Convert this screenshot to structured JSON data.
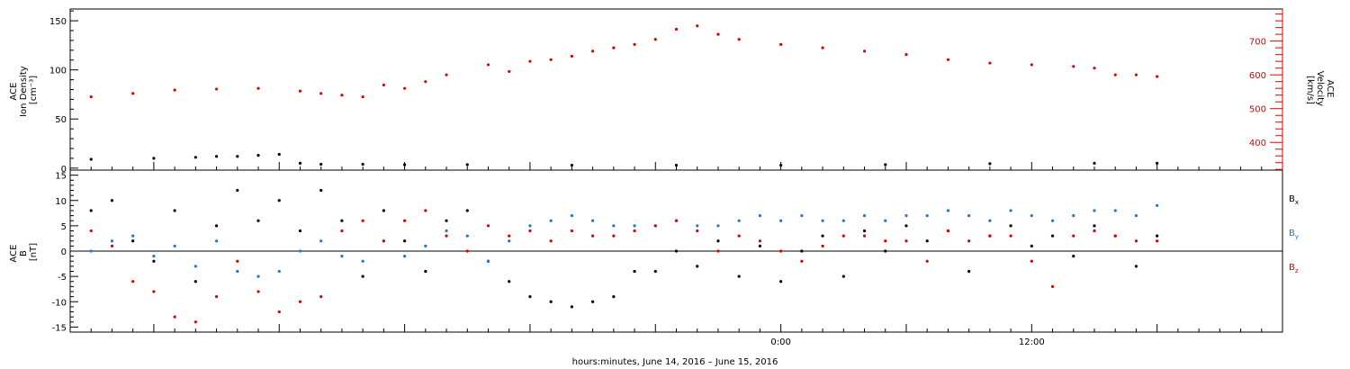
{
  "chart_data": [
    {
      "type": "scatter",
      "panel": "top",
      "left_axis": {
        "label_lines": [
          "ACE",
          "Ion Density",
          "[cm⁻³]"
        ],
        "ylim": [
          -2,
          162
        ],
        "ticks": [
          0,
          50,
          100,
          150
        ],
        "tick_labels": [
          "0",
          "50",
          "100",
          "150"
        ]
      },
      "right_axis": {
        "label_lines": [
          "ACE",
          "Velocity",
          "[km/s]"
        ],
        "ylim": [
          318,
          795
        ],
        "ticks": [
          400,
          500,
          600,
          700
        ],
        "tick_labels": [
          "400",
          "500",
          "600",
          "700"
        ],
        "color": "#dd0000"
      },
      "series": [
        {
          "axis": "left",
          "color": "#000000",
          "x": [
            -33,
            -30,
            -28,
            -27,
            -26,
            -25,
            -24,
            -23,
            -22,
            -20,
            -18,
            -15,
            -10,
            -5,
            0,
            5,
            10,
            15,
            18
          ],
          "y": [
            9,
            10,
            11,
            12,
            12,
            13,
            14,
            5,
            4,
            4,
            3.5,
            3.5,
            3,
            3,
            3,
            3.5,
            4.5,
            5,
            5
          ]
        },
        {
          "axis": "right",
          "color": "#dd0000",
          "x": [
            -33,
            -31,
            -29,
            -27,
            -25,
            -23,
            -22,
            -21,
            -20,
            -19,
            -18,
            -17,
            -16,
            -14,
            -13,
            -12,
            -11,
            -10,
            -9,
            -8,
            -7,
            -6,
            -5,
            -4,
            -3,
            -2,
            0,
            2,
            4,
            6,
            8,
            10,
            12,
            14,
            15,
            16,
            17,
            18
          ],
          "y": [
            535,
            545,
            555,
            558,
            560,
            552,
            545,
            540,
            535,
            570,
            560,
            580,
            600,
            630,
            610,
            640,
            645,
            655,
            670,
            680,
            690,
            705,
            735,
            745,
            720,
            705,
            690,
            680,
            670,
            660,
            645,
            635,
            630,
            625,
            620,
            600,
            600,
            595
          ]
        }
      ]
    },
    {
      "type": "scatter",
      "panel": "bottom",
      "y_axis": {
        "label_lines": [
          "ACE",
          "B",
          "[nT]"
        ],
        "ylim": [
          -16,
          16
        ],
        "ticks": [
          -15,
          -10,
          -5,
          0,
          5,
          10,
          15
        ],
        "tick_labels": [
          "-15",
          "-10",
          "-5",
          "0",
          "5",
          "10",
          "15"
        ]
      },
      "zero_line": true,
      "legend": "right",
      "series": [
        {
          "name": "B",
          "subscript": "x",
          "color": "#000000",
          "x": [
            -33,
            -32,
            -31,
            -30,
            -29,
            -28,
            -27,
            -26,
            -25,
            -24,
            -23,
            -22,
            -21,
            -20,
            -19,
            -18,
            -17,
            -16,
            -15,
            -14,
            -13,
            -12,
            -11,
            -10,
            -9,
            -8,
            -7,
            -6,
            -5,
            -4,
            -3,
            -2,
            -1,
            0,
            1,
            2,
            3,
            4,
            5,
            6,
            7,
            8,
            9,
            10,
            11,
            12,
            13,
            14,
            15,
            16,
            17,
            18
          ],
          "y": [
            8,
            10,
            2,
            -2,
            8,
            -6,
            5,
            12,
            6,
            10,
            4,
            12,
            6,
            -5,
            8,
            2,
            -4,
            6,
            8,
            -2,
            -6,
            -9,
            -10,
            -11,
            -10,
            -9,
            -4,
            -4,
            0,
            -3,
            2,
            -5,
            1,
            -6,
            0,
            3,
            -5,
            4,
            0,
            5,
            2,
            4,
            -4,
            3,
            5,
            1,
            3,
            -1,
            5,
            3,
            -3,
            3
          ]
        },
        {
          "name": "B",
          "subscript": "y",
          "color": "#1f77d4",
          "x": [
            -33,
            -32,
            -31,
            -30,
            -29,
            -28,
            -27,
            -26,
            -25,
            -24,
            -23,
            -22,
            -21,
            -20,
            -19,
            -18,
            -17,
            -16,
            -15,
            -14,
            -13,
            -12,
            -11,
            -10,
            -9,
            -8,
            -7,
            -6,
            -5,
            -4,
            -3,
            -2,
            -1,
            0,
            1,
            2,
            3,
            4,
            5,
            6,
            7,
            8,
            9,
            10,
            11,
            12,
            13,
            14,
            15,
            16,
            17,
            18
          ],
          "y": [
            0,
            2,
            3,
            -1,
            1,
            -3,
            2,
            -4,
            -5,
            -4,
            0,
            2,
            -1,
            -2,
            2,
            -1,
            1,
            4,
            3,
            -2,
            2,
            5,
            6,
            7,
            6,
            5,
            5,
            5,
            6,
            5,
            5,
            6,
            7,
            6,
            7,
            6,
            6,
            7,
            6,
            7,
            7,
            8,
            7,
            6,
            8,
            7,
            6,
            7,
            8,
            8,
            7,
            9
          ]
        },
        {
          "name": "B",
          "subscript": "z",
          "color": "#dd0000",
          "x": [
            -33,
            -32,
            -31,
            -30,
            -29,
            -28,
            -27,
            -26,
            -25,
            -24,
            -23,
            -22,
            -21,
            -20,
            -19,
            -18,
            -17,
            -16,
            -15,
            -14,
            -13,
            -12,
            -11,
            -10,
            -9,
            -8,
            -7,
            -6,
            -5,
            -4,
            -3,
            -2,
            -1,
            0,
            1,
            2,
            3,
            4,
            5,
            6,
            7,
            8,
            9,
            10,
            11,
            12,
            13,
            14,
            15,
            16,
            17,
            18
          ],
          "y": [
            4,
            1,
            -6,
            -8,
            -13,
            -14,
            -9,
            -2,
            -8,
            -12,
            -10,
            -9,
            4,
            6,
            2,
            6,
            8,
            3,
            0,
            5,
            3,
            4,
            2,
            4,
            3,
            3,
            4,
            5,
            6,
            4,
            0,
            3,
            2,
            0,
            -2,
            1,
            3,
            3,
            2,
            2,
            -2,
            4,
            2,
            3,
            3,
            -2,
            -7,
            3,
            4,
            3,
            2,
            2
          ]
        }
      ]
    }
  ],
  "x_axis": {
    "xlim": [
      -34,
      24
    ],
    "major_ticks": [
      0,
      12
    ],
    "major_tick_labels": [
      "0:00",
      "12:00"
    ],
    "label": "hours:minutes, June 14, 2016 – June 15, 2016"
  }
}
